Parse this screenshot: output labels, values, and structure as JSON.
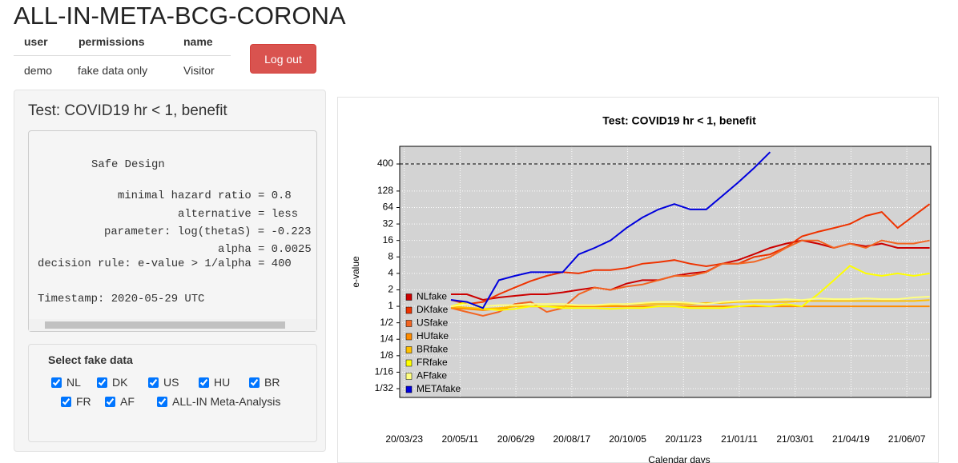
{
  "header": {
    "title": "ALL-IN-META-BCG-CORONA",
    "table": {
      "columns": [
        "user",
        "permissions",
        "name"
      ],
      "rows": [
        [
          "demo",
          "fake data only",
          "Visitor"
        ]
      ]
    },
    "logout_button": "Log out"
  },
  "sidebar": {
    "title": "Test: COVID19 hr < 1, benefit",
    "design_output": [
      "Safe Design",
      "minimal hazard ratio = 0.8",
      "alternative = less",
      "parameter: log(thetaS) = -0.223",
      "alpha = 0.0025",
      "decision rule: e-value > 1/alpha = 400",
      "Timestamp: 2020-05-29 UTC"
    ],
    "select_title": "Select fake data",
    "options": [
      {
        "label": "NL",
        "checked": true
      },
      {
        "label": "DK",
        "checked": true
      },
      {
        "label": "US",
        "checked": true
      },
      {
        "label": "HU",
        "checked": true
      },
      {
        "label": "BR",
        "checked": true
      },
      {
        "label": "FR",
        "checked": true
      },
      {
        "label": "AF",
        "checked": true
      },
      {
        "label": "ALL-IN Meta-Analysis",
        "checked": true
      }
    ]
  },
  "chart_data": {
    "type": "line",
    "title": "Test: COVID19 hr < 1, benefit",
    "x_label": "Calendar days",
    "y_label": "e-value",
    "log_scale": true,
    "grid": true,
    "legend": "bottom-left",
    "hline": 400,
    "xlim": [
      "20/03/19",
      "21/06/28"
    ],
    "xticks": [
      "20/03/23",
      "20/05/11",
      "20/06/29",
      "20/08/17",
      "20/10/05",
      "20/11/23",
      "21/01/11",
      "21/03/01",
      "21/04/19",
      "21/06/07"
    ],
    "ylim": [
      0.0216,
      840
    ],
    "yticks": [
      {
        "value": 0.03125,
        "label": "1/32"
      },
      {
        "value": 0.0625,
        "label": "1/16"
      },
      {
        "value": 0.125,
        "label": "1/8"
      },
      {
        "value": 0.25,
        "label": "1/4"
      },
      {
        "value": 0.5,
        "label": "1/2"
      },
      1,
      2,
      4,
      8,
      16,
      32,
      64,
      128,
      400
    ],
    "x": [
      "20/05/03",
      "20/05/17",
      "20/05/31",
      "20/06/14",
      "20/06/28",
      "20/07/12",
      "20/07/26",
      "20/08/09",
      "20/08/23",
      "20/09/06",
      "20/09/20",
      "20/10/04",
      "20/10/18",
      "20/11/01",
      "20/11/15",
      "20/11/29",
      "20/12/13",
      "20/12/27",
      "21/01/10",
      "21/01/24",
      "21/02/07",
      "21/02/21",
      "21/03/07",
      "21/03/21",
      "21/04/04",
      "21/04/18",
      "21/05/02",
      "21/05/16",
      "21/05/30",
      "21/06/13",
      "21/06/27"
    ],
    "series": [
      {
        "name": "NLfake",
        "color": "#cc0000",
        "values": [
          1.66,
          1.66,
          1.31,
          1.45,
          1.55,
          1.66,
          1.66,
          1.8,
          2.0,
          2.2,
          2.0,
          2.6,
          3.0,
          3.0,
          3.6,
          4.0,
          4.3,
          6.0,
          7.0,
          9.0,
          11.7,
          14,
          16,
          14,
          11.7,
          14,
          12.5,
          14,
          11.7,
          11.7,
          11.7
        ]
      },
      {
        "name": "DKfake",
        "color": "#ee3300",
        "values": [
          1.31,
          1.1,
          1.2,
          1.66,
          2.2,
          2.9,
          3.6,
          4.2,
          4.0,
          4.6,
          4.6,
          5.0,
          6.0,
          6.4,
          7.0,
          6.0,
          5.4,
          6.0,
          6.0,
          8.0,
          8.9,
          12,
          19,
          23,
          27,
          32,
          45,
          53,
          27,
          45,
          74
        ]
      },
      {
        "name": "USfake",
        "color": "#f26522",
        "values": [
          0.93,
          0.79,
          0.67,
          0.79,
          1.1,
          1.2,
          0.79,
          0.93,
          1.66,
          2.2,
          2.0,
          2.3,
          2.5,
          3.0,
          3.6,
          3.6,
          4.2,
          6.0,
          6.0,
          6.5,
          8.0,
          11.7,
          16,
          16,
          11.7,
          14,
          11.7,
          16,
          14,
          14,
          16
        ]
      },
      {
        "name": "HUfake",
        "color": "#ff8c00",
        "values": [
          0.93,
          0.9,
          0.85,
          0.9,
          1,
          1,
          1,
          1,
          1,
          1,
          1,
          1,
          1,
          1,
          1,
          1,
          1,
          1,
          1,
          1,
          1,
          1,
          1,
          1,
          1,
          1,
          1,
          1,
          1,
          1,
          1
        ]
      },
      {
        "name": "BRfake",
        "color": "#ffc000",
        "values": [
          1.0,
          0.95,
          0.9,
          0.93,
          1,
          1,
          1,
          1,
          1.05,
          1.05,
          1.05,
          1.1,
          1.1,
          1.1,
          1.1,
          1.1,
          1.15,
          1.15,
          1.2,
          1.2,
          1.2,
          1.2,
          1.25,
          1.25,
          1.25,
          1.25,
          1.25,
          1.25,
          1.25,
          1.25,
          1.3
        ]
      },
      {
        "name": "FRfake",
        "color": "#ffff00",
        "values": [
          1.0,
          1.2,
          0.9,
          0.85,
          0.9,
          1.0,
          1.0,
          0.93,
          0.93,
          0.93,
          0.9,
          0.93,
          0.93,
          1.0,
          1.0,
          0.93,
          0.93,
          0.93,
          1.0,
          1.05,
          1.0,
          1.1,
          1.0,
          1.66,
          3.0,
          5.5,
          4.0,
          3.6,
          4.0,
          3.6,
          4.0
        ]
      },
      {
        "name": "AFfake",
        "color": "#ffff80",
        "values": [
          1.0,
          1.1,
          1.0,
          1.05,
          1.05,
          1.1,
          1.1,
          1.1,
          1.05,
          1.05,
          1.1,
          1.1,
          1.15,
          1.2,
          1.2,
          1.15,
          1.1,
          1.2,
          1.25,
          1.3,
          1.3,
          1.35,
          1.3,
          1.4,
          1.35,
          1.35,
          1.4,
          1.35,
          1.35,
          1.45,
          1.5
        ]
      },
      {
        "name": "METAfake",
        "color": "#0000dd",
        "values": [
          1.31,
          1.2,
          0.93,
          3.0,
          3.6,
          4.2,
          4.2,
          4.2,
          8.9,
          11.7,
          16,
          27,
          42,
          59,
          74,
          59,
          59,
          104,
          184,
          338,
          660,
          null,
          null,
          null,
          null,
          null,
          null,
          null,
          null,
          null,
          null
        ]
      }
    ]
  }
}
